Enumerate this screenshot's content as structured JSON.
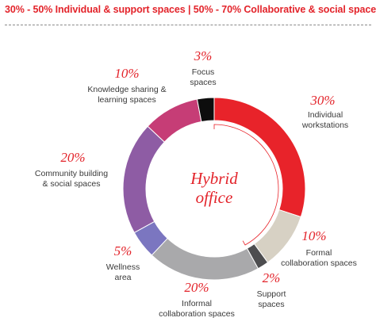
{
  "header": {
    "text": "30% - 50% Individual & support spaces | 50% - 70% Collaborative & social spaces"
  },
  "chart_data": {
    "type": "pie",
    "center_label": [
      "Hybrid",
      "office"
    ],
    "series": [
      {
        "label": [
          "Individual",
          "workstations"
        ],
        "value": 30,
        "percent_label": "30%",
        "color": "#e8232a"
      },
      {
        "label": [
          "Formal",
          "collaboration spaces"
        ],
        "value": 10,
        "percent_label": "10%",
        "color": "#d7d1c4"
      },
      {
        "label": [
          "Support",
          "spaces"
        ],
        "value": 2,
        "percent_label": "2%",
        "color": "#4d4d4f"
      },
      {
        "label": [
          "Informal",
          "collaboration spaces"
        ],
        "value": 20,
        "percent_label": "20%",
        "color": "#a9a9ab"
      },
      {
        "label": [
          "Wellness",
          "area"
        ],
        "value": 5,
        "percent_label": "5%",
        "color": "#7b76c0"
      },
      {
        "label": [
          "Community building",
          "& social spaces"
        ],
        "value": 20,
        "percent_label": "20%",
        "color": "#8e5ca4"
      },
      {
        "label": [
          "Knowledge sharing &",
          "learning spaces"
        ],
        "value": 10,
        "percent_label": "10%",
        "color": "#c63d76"
      },
      {
        "label": [
          "Focus",
          "spaces"
        ],
        "value": 3,
        "percent_label": "3%",
        "color": "#0d0d0d"
      }
    ]
  }
}
